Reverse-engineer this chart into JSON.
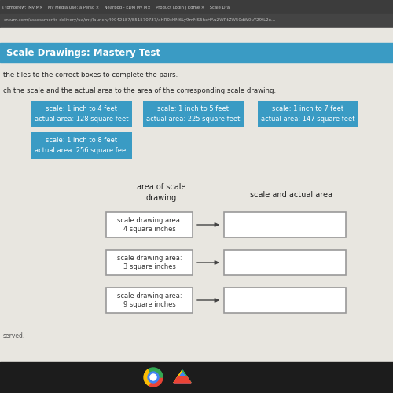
{
  "title": "Scale Drawings: Mastery Test",
  "instruction1": "the tiles to the correct boxes to complete the pairs.",
  "instruction2": "ch the scale and the actual area to the area of the corresponding scale drawing.",
  "url_bar": "entum.com/assessments-delivery/ua/mt/launch/49042187/851570737/aHR0cHM6Ly9mMS5hcHAuZWRtZW50dW0uY29tL2x...",
  "tab_bar_text": "s tomorrow: 'My M×    My Media Use: a Perso ×    Nearpod - EDM My M×    Product Login | Edme ×    Scale Dra",
  "blue_tiles": [
    {
      "line1": "scale: 1 inch to 4 feet",
      "line2": "actual area: 128 square feet"
    },
    {
      "line1": "scale: 1 inch to 5 feet",
      "line2": "actual area: 225 square feet"
    },
    {
      "line1": "scale: 1 inch to 7 feet",
      "line2": "actual area: 147 square feet"
    },
    {
      "line1": "scale: 1 inch to 8 feet",
      "line2": "actual area: 256 square feet"
    }
  ],
  "tile_bg": "#3a9bc4",
  "tile_text_color": "#ffffff",
  "left_col_header": "area of scale\ndrawing",
  "right_col_header": "scale and actual area",
  "left_boxes": [
    "scale drawing area:\n4 square inches",
    "scale drawing area:\n3 square inches",
    "scale drawing area:\n9 square inches"
  ],
  "box_border": "#999999",
  "bg_color": "#c8c8c8",
  "content_bg": "#e8e6e0",
  "browser_dark": "#2b2b2b",
  "header_bar_color": "#3a9bc4",
  "reserved_text": "served.",
  "taskbar_color": "#1c1c1c",
  "tab_bar_color": "#3c3c3c",
  "url_bar_color": "#444444"
}
